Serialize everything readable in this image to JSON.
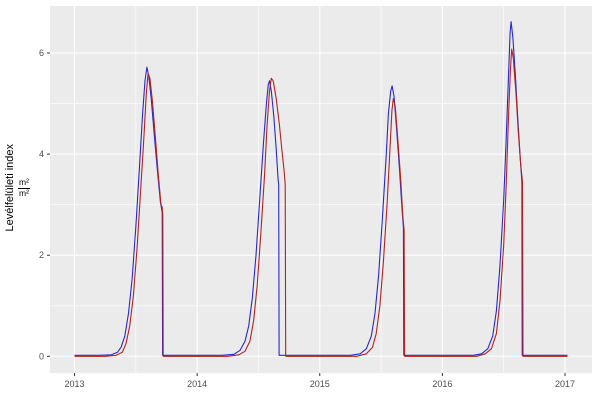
{
  "chart_data": {
    "type": "line",
    "title": "",
    "xlabel": "",
    "ylabel": {
      "text": "Levélfelületi index",
      "frac_num": "m²",
      "frac_den": "m²"
    },
    "x_ticks": [
      2013,
      2014,
      2015,
      2016,
      2017
    ],
    "x_tick_labels": [
      "2013",
      "2014",
      "2015",
      "2016",
      "2017"
    ],
    "y_ticks": [
      0,
      2,
      4,
      6
    ],
    "y_tick_labels": [
      "0",
      "2",
      "4",
      "6"
    ],
    "x_minor": [
      2013.5,
      2014.5,
      2015.5,
      2016.5
    ],
    "y_minor": [
      1,
      3,
      5
    ],
    "xlim": [
      2012.8,
      2017.22
    ],
    "ylim": [
      -0.33,
      6.93
    ],
    "panel_background": "#EBEBEB",
    "gridline_color": "#FFFFFF",
    "tick_label_color": "#4D4D4D",
    "tick_mark_color": "#333333",
    "legend": "none",
    "series": [
      {
        "name": "series-blue",
        "color": "#2828CC",
        "points": [
          [
            2013.0,
            0.02
          ],
          [
            2013.2,
            0.02
          ],
          [
            2013.3,
            0.03
          ],
          [
            2013.35,
            0.08
          ],
          [
            2013.38,
            0.18
          ],
          [
            2013.41,
            0.4
          ],
          [
            2013.44,
            0.85
          ],
          [
            2013.47,
            1.55
          ],
          [
            2013.5,
            2.55
          ],
          [
            2013.53,
            3.75
          ],
          [
            2013.555,
            4.8
          ],
          [
            2013.575,
            5.45
          ],
          [
            2013.59,
            5.72
          ],
          [
            2013.605,
            5.55
          ],
          [
            2013.625,
            5.1
          ],
          [
            2013.65,
            4.4
          ],
          [
            2013.675,
            3.7
          ],
          [
            2013.7,
            3.05
          ],
          [
            2013.715,
            2.85
          ],
          [
            2013.718,
            0.02
          ],
          [
            2013.85,
            0.02
          ],
          [
            2014.0,
            0.02
          ],
          [
            2014.2,
            0.02
          ],
          [
            2014.3,
            0.04
          ],
          [
            2014.35,
            0.12
          ],
          [
            2014.39,
            0.3
          ],
          [
            2014.42,
            0.6
          ],
          [
            2014.45,
            1.15
          ],
          [
            2014.48,
            2.0
          ],
          [
            2014.51,
            3.1
          ],
          [
            2014.54,
            4.2
          ],
          [
            2014.565,
            5.0
          ],
          [
            2014.58,
            5.38
          ],
          [
            2014.59,
            5.45
          ],
          [
            2014.605,
            5.25
          ],
          [
            2014.625,
            4.75
          ],
          [
            2014.645,
            4.1
          ],
          [
            2014.66,
            3.5
          ],
          [
            2014.665,
            3.4
          ],
          [
            2014.668,
            0.02
          ],
          [
            2014.85,
            0.02
          ],
          [
            2015.0,
            0.02
          ],
          [
            2015.25,
            0.02
          ],
          [
            2015.33,
            0.05
          ],
          [
            2015.38,
            0.15
          ],
          [
            2015.42,
            0.4
          ],
          [
            2015.45,
            0.85
          ],
          [
            2015.48,
            1.6
          ],
          [
            2015.51,
            2.7
          ],
          [
            2015.54,
            3.9
          ],
          [
            2015.56,
            4.8
          ],
          [
            2015.578,
            5.25
          ],
          [
            2015.59,
            5.35
          ],
          [
            2015.605,
            5.15
          ],
          [
            2015.625,
            4.55
          ],
          [
            2015.65,
            3.7
          ],
          [
            2015.67,
            2.95
          ],
          [
            2015.682,
            2.55
          ],
          [
            2015.685,
            0.02
          ],
          [
            2015.85,
            0.02
          ],
          [
            2016.0,
            0.02
          ],
          [
            2016.25,
            0.02
          ],
          [
            2016.32,
            0.05
          ],
          [
            2016.37,
            0.15
          ],
          [
            2016.41,
            0.4
          ],
          [
            2016.44,
            0.9
          ],
          [
            2016.47,
            1.8
          ],
          [
            2016.5,
            3.1
          ],
          [
            2016.52,
            4.3
          ],
          [
            2016.54,
            5.6
          ],
          [
            2016.552,
            6.4
          ],
          [
            2016.56,
            6.62
          ],
          [
            2016.575,
            6.3
          ],
          [
            2016.595,
            5.55
          ],
          [
            2016.615,
            4.7
          ],
          [
            2016.635,
            3.9
          ],
          [
            2016.648,
            3.45
          ],
          [
            2016.651,
            0.02
          ],
          [
            2016.85,
            0.02
          ],
          [
            2017.02,
            0.02
          ]
        ]
      },
      {
        "name": "series-red",
        "color": "#B22222",
        "points": [
          [
            2013.0,
            0.0
          ],
          [
            2013.25,
            0.0
          ],
          [
            2013.34,
            0.02
          ],
          [
            2013.39,
            0.08
          ],
          [
            2013.42,
            0.25
          ],
          [
            2013.45,
            0.6
          ],
          [
            2013.48,
            1.2
          ],
          [
            2013.51,
            2.15
          ],
          [
            2013.54,
            3.3
          ],
          [
            2013.565,
            4.3
          ],
          [
            2013.585,
            5.2
          ],
          [
            2013.6,
            5.6
          ],
          [
            2013.615,
            5.5
          ],
          [
            2013.635,
            5.05
          ],
          [
            2013.66,
            4.3
          ],
          [
            2013.685,
            3.55
          ],
          [
            2013.705,
            3.0
          ],
          [
            2013.715,
            2.95
          ],
          [
            2013.72,
            2.78
          ],
          [
            2013.723,
            0.0
          ],
          [
            2013.85,
            0.0
          ],
          [
            2014.0,
            0.0
          ],
          [
            2014.25,
            0.0
          ],
          [
            2014.34,
            0.03
          ],
          [
            2014.39,
            0.1
          ],
          [
            2014.43,
            0.3
          ],
          [
            2014.46,
            0.7
          ],
          [
            2014.49,
            1.4
          ],
          [
            2014.52,
            2.45
          ],
          [
            2014.55,
            3.6
          ],
          [
            2014.57,
            4.55
          ],
          [
            2014.59,
            5.25
          ],
          [
            2014.605,
            5.5
          ],
          [
            2014.62,
            5.45
          ],
          [
            2014.645,
            5.1
          ],
          [
            2014.67,
            4.6
          ],
          [
            2014.69,
            4.1
          ],
          [
            2014.71,
            3.65
          ],
          [
            2014.718,
            3.4
          ],
          [
            2014.722,
            0.0
          ],
          [
            2014.85,
            0.0
          ],
          [
            2015.0,
            0.0
          ],
          [
            2015.3,
            0.0
          ],
          [
            2015.38,
            0.05
          ],
          [
            2015.43,
            0.18
          ],
          [
            2015.46,
            0.45
          ],
          [
            2015.49,
            1.0
          ],
          [
            2015.52,
            1.9
          ],
          [
            2015.55,
            3.05
          ],
          [
            2015.57,
            4.0
          ],
          [
            2015.588,
            4.85
          ],
          [
            2015.6,
            5.1
          ],
          [
            2015.615,
            4.95
          ],
          [
            2015.635,
            4.35
          ],
          [
            2015.66,
            3.5
          ],
          [
            2015.678,
            2.75
          ],
          [
            2015.688,
            2.5
          ],
          [
            2015.692,
            0.0
          ],
          [
            2015.85,
            0.0
          ],
          [
            2016.0,
            0.0
          ],
          [
            2016.28,
            0.0
          ],
          [
            2016.35,
            0.05
          ],
          [
            2016.4,
            0.15
          ],
          [
            2016.44,
            0.45
          ],
          [
            2016.47,
            1.1
          ],
          [
            2016.5,
            2.2
          ],
          [
            2016.52,
            3.4
          ],
          [
            2016.54,
            4.8
          ],
          [
            2016.555,
            5.7
          ],
          [
            2016.565,
            6.08
          ],
          [
            2016.578,
            5.9
          ],
          [
            2016.6,
            5.2
          ],
          [
            2016.62,
            4.4
          ],
          [
            2016.64,
            3.75
          ],
          [
            2016.653,
            3.45
          ],
          [
            2016.657,
            0.0
          ],
          [
            2016.85,
            0.0
          ],
          [
            2017.02,
            0.0
          ]
        ]
      }
    ]
  }
}
